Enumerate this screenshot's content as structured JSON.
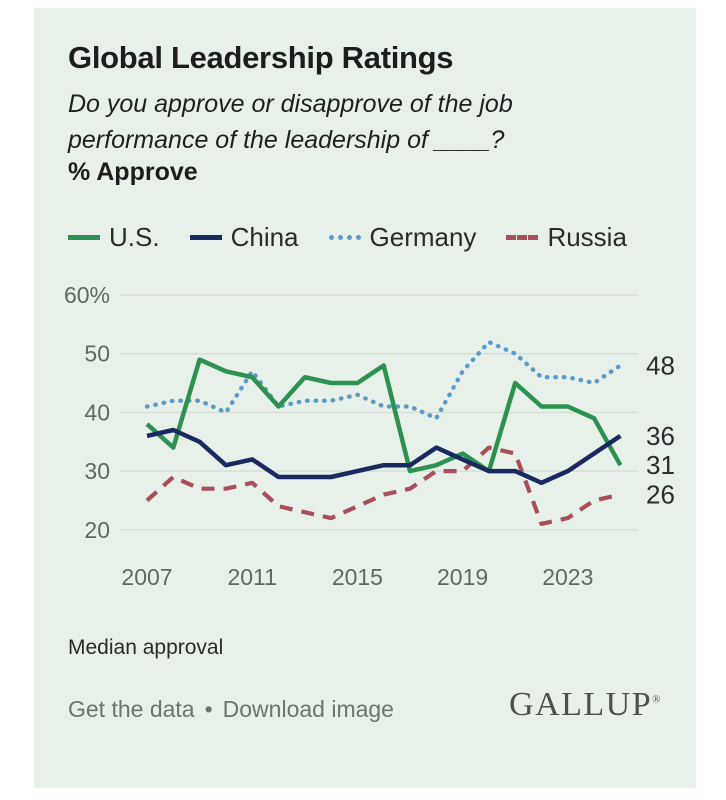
{
  "header": {
    "title": "Global Leadership Ratings",
    "subtitle_line1": "Do you approve or disapprove of the job",
    "subtitle_line2": "performance of the leadership of ____?",
    "measure_label": "% Approve"
  },
  "colors": {
    "panel_background": "#e8f1e9",
    "page_background": "#ffffff",
    "gridline": "#d5ded6",
    "axis_text": "#5e6a60",
    "end_label_text": "#2d2d2d",
    "title_text": "#1d1d1d",
    "link_text": "#6b756c",
    "brand_text": "#4c5147"
  },
  "chart_data": {
    "type": "line",
    "title": "Global Leadership Ratings",
    "ylabel": "% Approve",
    "ylim": [
      20,
      60
    ],
    "grid": true,
    "legend_position": "top",
    "x": [
      2007,
      2008,
      2009,
      2010,
      2011,
      2012,
      2013,
      2014,
      2015,
      2016,
      2017,
      2018,
      2019,
      2020,
      2021,
      2022,
      2023,
      2024,
      2025
    ],
    "x_tick_labels": [
      "2007",
      "2011",
      "2015",
      "2019",
      "2023"
    ],
    "y_ticks": [
      {
        "value": 60,
        "label": "60%"
      },
      {
        "value": 50,
        "label": "50"
      },
      {
        "value": 40,
        "label": "40"
      },
      {
        "value": 30,
        "label": "30"
      },
      {
        "value": 20,
        "label": "20"
      }
    ],
    "series": [
      {
        "name": "U.S.",
        "color": "#2d9150",
        "style": "solid",
        "end_label": "31",
        "values": [
          38,
          34,
          49,
          47,
          46,
          41,
          46,
          45,
          45,
          48,
          30,
          31,
          33,
          30,
          45,
          41,
          41,
          39,
          31
        ]
      },
      {
        "name": "China",
        "color": "#182a60",
        "style": "solid",
        "end_label": "36",
        "values": [
          36,
          37,
          35,
          31,
          32,
          29,
          29,
          29,
          30,
          31,
          31,
          34,
          32,
          30,
          30,
          28,
          30,
          33,
          36
        ]
      },
      {
        "name": "Germany",
        "color": "#5a9bcb",
        "style": "dotted",
        "end_label": "48",
        "values": [
          41,
          42,
          42,
          40,
          47,
          41,
          42,
          42,
          43,
          41,
          41,
          39,
          47,
          52,
          50,
          46,
          46,
          45,
          48
        ]
      },
      {
        "name": "Russia",
        "color": "#a94f58",
        "style": "dashed",
        "end_label": "26",
        "values": [
          25,
          29,
          27,
          27,
          28,
          24,
          23,
          22,
          24,
          26,
          27,
          30,
          30,
          34,
          33,
          21,
          22,
          25,
          26
        ]
      }
    ]
  },
  "footer": {
    "note": "Median approval",
    "link_get_data": "Get the data",
    "link_separator": "•",
    "link_download": "Download image",
    "brand": "GALLUP",
    "brand_mark": "®"
  }
}
